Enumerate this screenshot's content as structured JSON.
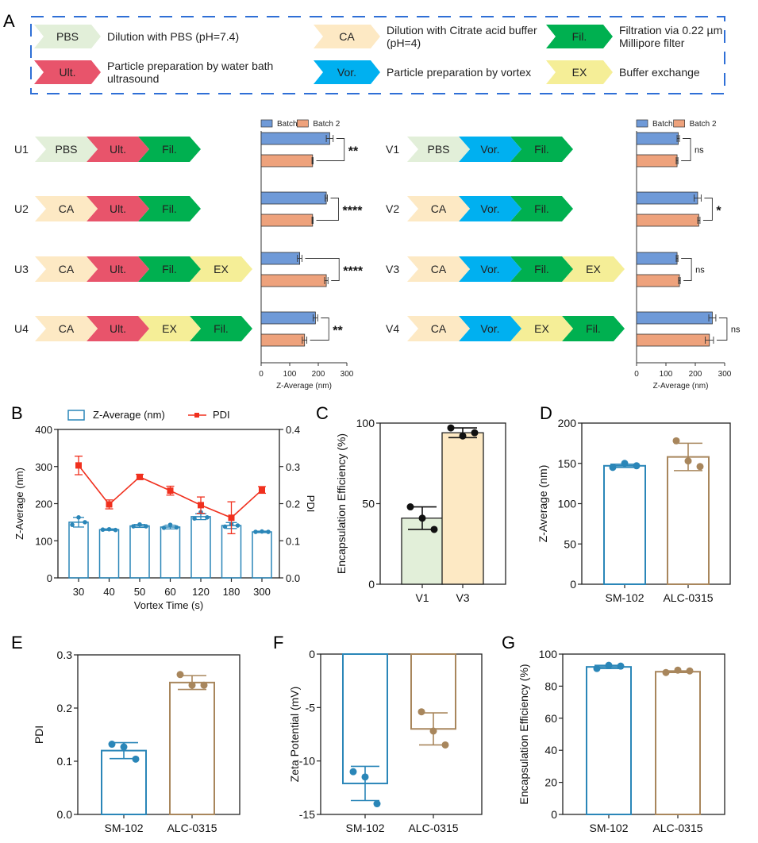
{
  "panel_labels": {
    "A": "A",
    "B": "B",
    "C": "C",
    "D": "D",
    "E": "E",
    "F": "F",
    "G": "G"
  },
  "legend_steps": [
    {
      "key": "PBS",
      "label": "PBS",
      "desc": [
        "Dilution with PBS  (pH=7.4)"
      ],
      "color": "#e2efd9"
    },
    {
      "key": "CA",
      "label": "CA",
      "desc": [
        "Dilution with Citrate acid buffer",
        "(pH=4)"
      ],
      "color": "#fde9c4"
    },
    {
      "key": "Fil",
      "label": "Fil.",
      "desc": [
        "Filtration via 0.22 µm",
        "Millipore filter"
      ],
      "color": "#00b050"
    },
    {
      "key": "Ult",
      "label": "Ult.",
      "desc": [
        "Particle preparation by water bath",
        "ultrasound"
      ],
      "color": "#e8546b"
    },
    {
      "key": "Vor",
      "label": "Vor.",
      "desc": [
        "Particle preparation by vortex"
      ],
      "color": "#00b0f0"
    },
    {
      "key": "EX",
      "label": "EX",
      "desc": [
        "Buffer exchange"
      ],
      "color": "#f5ee97"
    }
  ],
  "workflows_left": [
    {
      "name": "U1",
      "steps": [
        "PBS",
        "Ult",
        "Fil"
      ]
    },
    {
      "name": "U2",
      "steps": [
        "CA",
        "Ult",
        "Fil"
      ]
    },
    {
      "name": "U3",
      "steps": [
        "CA",
        "Ult",
        "Fil",
        "EX"
      ]
    },
    {
      "name": "U4",
      "steps": [
        "CA",
        "Ult",
        "EX",
        "Fil"
      ]
    }
  ],
  "workflows_right": [
    {
      "name": "V1",
      "steps": [
        "PBS",
        "Vor",
        "Fil"
      ]
    },
    {
      "name": "V2",
      "steps": [
        "CA",
        "Vor",
        "Fil"
      ]
    },
    {
      "name": "V3",
      "steps": [
        "CA",
        "Vor",
        "Fil",
        "EX"
      ]
    },
    {
      "name": "V4",
      "steps": [
        "CA",
        "Vor",
        "EX",
        "Fil"
      ]
    }
  ],
  "chart_data": [
    {
      "id": "A-left",
      "type": "bar",
      "orientation": "horizontal",
      "categories": [
        "U1",
        "U2",
        "U3",
        "U4"
      ],
      "series": [
        {
          "name": "Batch 1",
          "color": "#6f9ad8",
          "values": [
            240,
            228,
            135,
            190
          ],
          "err": [
            12,
            4,
            8,
            8
          ]
        },
        {
          "name": "Batch 2",
          "color": "#eea27c",
          "values": [
            180,
            180,
            228,
            152
          ],
          "err": [
            2,
            2,
            6,
            8
          ]
        }
      ],
      "significance": [
        "**",
        "****",
        "****",
        "**"
      ],
      "xlabel": "Z-Average (nm)",
      "xlim": [
        0,
        300
      ],
      "xticks": [
        0,
        100,
        200,
        300
      ],
      "legend": "top"
    },
    {
      "id": "A-right",
      "type": "bar",
      "orientation": "horizontal",
      "categories": [
        "V1",
        "V2",
        "V3",
        "V4"
      ],
      "series": [
        {
          "name": "Batch 1",
          "color": "#6f9ad8",
          "values": [
            142,
            208,
            138,
            258
          ],
          "err": [
            4,
            12,
            3,
            12
          ]
        },
        {
          "name": "Batch 2",
          "color": "#eea27c",
          "values": [
            138,
            212,
            146,
            248
          ],
          "err": [
            3,
            4,
            3,
            14
          ]
        }
      ],
      "significance": [
        "ns",
        "*",
        "ns",
        "ns"
      ],
      "xlabel": "Z-Average (nm)",
      "xlim": [
        0,
        300
      ],
      "xticks": [
        0,
        100,
        200,
        300
      ],
      "legend": "top"
    },
    {
      "id": "B",
      "type": "bar+line",
      "categories": [
        "30",
        "40",
        "50",
        "60",
        "120",
        "180",
        "300"
      ],
      "xlabel": "Vortex Time (s)",
      "ylabel": "Z-Average (nm)",
      "ylim": [
        0,
        400
      ],
      "yticks": [
        0,
        100,
        200,
        300,
        400
      ],
      "y2label": "PDI",
      "y2lim": [
        0,
        0.4
      ],
      "y2ticks": [
        "0.0",
        "0.1",
        "0.2",
        "0.3",
        "0.4"
      ],
      "bars": {
        "name": "Z-Average (nm)",
        "color": "#2a86b8",
        "values": [
          150,
          130,
          140,
          137,
          165,
          141,
          124
        ],
        "err": [
          13,
          2,
          4,
          5,
          8,
          8,
          2
        ],
        "points": [
          [
            143,
            163,
            150
          ],
          [
            130,
            131,
            129
          ],
          [
            139,
            144,
            139
          ],
          [
            135,
            143,
            136
          ],
          [
            160,
            177,
            163
          ],
          [
            138,
            145,
            141
          ],
          [
            124,
            125,
            124
          ]
        ]
      },
      "line": {
        "name": "PDI",
        "color": "#f0301e",
        "values": [
          0.303,
          0.198,
          0.272,
          0.235,
          0.196,
          0.162,
          0.237
        ],
        "err": [
          0.025,
          0.012,
          0.007,
          0.012,
          0.022,
          0.043,
          0.009
        ]
      },
      "legend": "top"
    },
    {
      "id": "C",
      "type": "bar",
      "categories": [
        "V1",
        "V3"
      ],
      "values": [
        41,
        94
      ],
      "err": [
        7,
        3
      ],
      "points": [
        [
          48,
          41,
          34
        ],
        [
          97,
          92,
          94
        ]
      ],
      "colors": [
        "#e2efd9",
        "#fde9c4"
      ],
      "ylabel": "Encapsulation Efficiency (%)",
      "ylim": [
        0,
        100
      ],
      "yticks": [
        0,
        50,
        100
      ]
    },
    {
      "id": "D",
      "type": "bar",
      "categories": [
        "SM-102",
        "ALC-0315"
      ],
      "values": [
        147,
        158
      ],
      "err": [
        2,
        17
      ],
      "points": [
        [
          145,
          150,
          147
        ],
        [
          178,
          153,
          146
        ]
      ],
      "colors": [
        "#2a86b8",
        "#a8865c"
      ],
      "ylabel": "Z-Average (nm)",
      "ylim": [
        0,
        200
      ],
      "yticks": [
        0,
        50,
        100,
        150,
        200
      ]
    },
    {
      "id": "E",
      "type": "bar",
      "categories": [
        "SM-102",
        "ALC-0315"
      ],
      "values": [
        0.12,
        0.248
      ],
      "err": [
        0.015,
        0.013
      ],
      "points": [
        [
          0.132,
          0.127,
          0.104
        ],
        [
          0.263,
          0.243,
          0.243
        ]
      ],
      "colors": [
        "#2a86b8",
        "#a8865c"
      ],
      "ylabel": "PDI",
      "ylim": [
        0,
        0.3
      ],
      "yticks": [
        "0.0",
        "0.1",
        "0.2",
        "0.3"
      ]
    },
    {
      "id": "F",
      "type": "bar",
      "categories": [
        "SM-102",
        "ALC-0315"
      ],
      "values": [
        -12.1,
        -7.0
      ],
      "err": [
        1.6,
        1.5
      ],
      "points": [
        [
          -11.0,
          -11.5,
          -14.0
        ],
        [
          -5.4,
          -7.2,
          -8.5
        ]
      ],
      "colors": [
        "#2a86b8",
        "#a8865c"
      ],
      "ylabel": "Zeta Potential (mV)",
      "ylim": [
        -15,
        0
      ],
      "yticks": [
        -15,
        -10,
        -5,
        0
      ]
    },
    {
      "id": "G",
      "type": "bar",
      "categories": [
        "SM-102",
        "ALC-0315"
      ],
      "values": [
        92,
        89
      ],
      "err": [
        1,
        0.5
      ],
      "points": [
        [
          91,
          93,
          92.5
        ],
        [
          88.5,
          90,
          89.5
        ]
      ],
      "colors": [
        "#2a86b8",
        "#a8865c"
      ],
      "ylabel": "Encapsulation Efficiency (%)",
      "ylim": [
        0,
        100
      ],
      "yticks": [
        0,
        20,
        40,
        60,
        80,
        100
      ]
    }
  ]
}
